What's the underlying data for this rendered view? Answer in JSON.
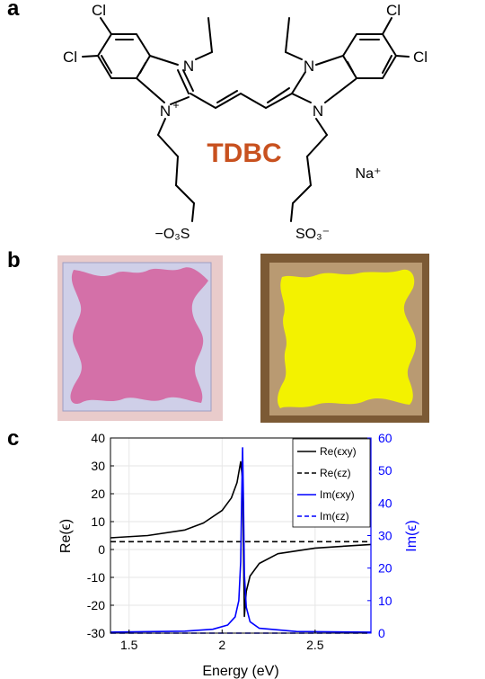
{
  "panels": {
    "a": "a",
    "b": "b",
    "c": "c"
  },
  "molecule": {
    "name": "TDBC",
    "name_color": "#c8511f",
    "cl_labels": [
      "Cl",
      "Cl",
      "Cl",
      "Cl"
    ],
    "n_left_top": "N",
    "n_left_bottom": "N",
    "n_left_bottom_charge": "+",
    "n_right_top": "N",
    "n_right_bottom": "N",
    "sulfonate_left": "−O₃S",
    "sulfonate_right": "SO₃⁻",
    "counter_ion": "Na⁺"
  },
  "photos": {
    "left_film_color": "#d470a8",
    "right_film_color": "#f3f200",
    "left_bg": "#e9cbcb",
    "right_bg": "#7c5a35"
  },
  "chart_data": {
    "type": "line",
    "xlabel": "Energy (eV)",
    "ylabel_left": "Re(ϵ)",
    "ylabel_right": "Im(ϵ)",
    "xlim": [
      1.4,
      2.8
    ],
    "ylim_left": [
      -30,
      40
    ],
    "ylim_right": [
      0,
      60
    ],
    "x_ticks": [
      "1.5",
      "2",
      "2.5"
    ],
    "x_tick_values": [
      1.5,
      2.0,
      2.5
    ],
    "y_left_ticks": [
      "40",
      "30",
      "20",
      "10",
      "0",
      "-10",
      "-20",
      "-30"
    ],
    "y_left_tick_values": [
      40,
      30,
      20,
      10,
      0,
      -10,
      -20,
      -30
    ],
    "y_right_ticks": [
      "60",
      "50",
      "40",
      "30",
      "20",
      "10",
      "0"
    ],
    "y_right_tick_values": [
      60,
      50,
      40,
      30,
      20,
      10,
      0
    ],
    "grid": true,
    "legend_position": "top-right",
    "colors": {
      "left_axis": "#000000",
      "right_axis": "#0000ff"
    },
    "series": [
      {
        "name": "Re(ϵxy)",
        "axis": "left",
        "style": "solid",
        "color": "#000000",
        "x": [
          1.4,
          1.6,
          1.8,
          1.9,
          2.0,
          2.05,
          2.08,
          2.1,
          2.11,
          2.115,
          2.12,
          2.13,
          2.15,
          2.2,
          2.3,
          2.5,
          2.8
        ],
        "y": [
          4.2,
          5.0,
          7.0,
          9.5,
          14.0,
          18.5,
          24.0,
          31.5,
          25.0,
          0.0,
          -24.0,
          -15.0,
          -9.5,
          -5.0,
          -1.5,
          0.5,
          1.8
        ]
      },
      {
        "name": "Re(ϵz)",
        "axis": "left",
        "style": "dashed",
        "color": "#000000",
        "x": [
          1.4,
          2.8
        ],
        "y": [
          2.8,
          2.8
        ]
      },
      {
        "name": "Im(ϵxy)",
        "axis": "right",
        "style": "solid",
        "color": "#0000ff",
        "x": [
          1.4,
          1.8,
          1.95,
          2.03,
          2.07,
          2.09,
          2.1,
          2.105,
          2.11,
          2.115,
          2.12,
          2.13,
          2.15,
          2.2,
          2.4,
          2.8
        ],
        "y": [
          0.3,
          0.6,
          1.2,
          2.5,
          5.0,
          10.0,
          22.0,
          40.0,
          57.0,
          40.0,
          18.0,
          8.0,
          3.5,
          1.5,
          0.5,
          0.3
        ]
      },
      {
        "name": "Im(ϵz)",
        "axis": "right",
        "style": "dashed",
        "color": "#0000ff",
        "x": [
          1.4,
          2.8
        ],
        "y": [
          0.0,
          0.0
        ]
      }
    ]
  }
}
